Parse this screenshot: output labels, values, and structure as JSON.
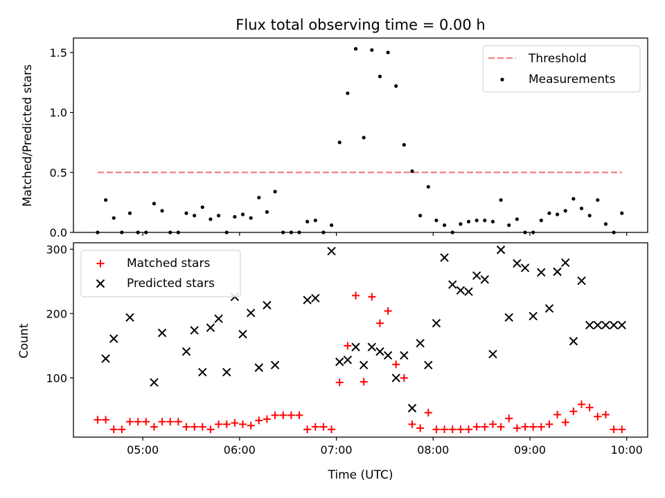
{
  "chart_data": [
    {
      "type": "scatter",
      "title": "Flux total observing time = 0.00 h",
      "xlabel": "",
      "ylabel": "Matched/Predicted stars",
      "xlim": [
        "04:17",
        "10:13"
      ],
      "ylim": [
        0,
        1.62
      ],
      "yticks": [
        0.0,
        0.5,
        1.0,
        1.5
      ],
      "ytick_labels": [
        "0.0",
        "0.5",
        "1.0",
        "1.5"
      ],
      "grid": false,
      "legend": {
        "placement": "top-right",
        "entries": [
          "Threshold",
          "Measurements"
        ]
      },
      "threshold": {
        "name": "Threshold",
        "value": 0.5,
        "x_start": "04:32",
        "x_end": "09:57",
        "color": "#f08080",
        "style": "dashed"
      },
      "series": [
        {
          "name": "Measurements",
          "marker": "dot",
          "color": "#000000",
          "x": [
            "04:32",
            "04:37",
            "04:42",
            "04:47",
            "04:52",
            "04:57",
            "05:02",
            "05:07",
            "05:12",
            "05:17",
            "05:22",
            "05:27",
            "05:32",
            "05:37",
            "05:42",
            "05:47",
            "05:52",
            "05:57",
            "06:02",
            "06:07",
            "06:12",
            "06:17",
            "06:22",
            "06:27",
            "06:32",
            "06:37",
            "06:42",
            "06:47",
            "06:52",
            "06:57",
            "07:02",
            "07:07",
            "07:12",
            "07:17",
            "07:22",
            "07:27",
            "07:32",
            "07:37",
            "07:42",
            "07:47",
            "07:52",
            "07:57",
            "08:02",
            "08:07",
            "08:12",
            "08:17",
            "08:22",
            "08:27",
            "08:32",
            "08:37",
            "08:42",
            "08:47",
            "08:52",
            "08:57",
            "09:02",
            "09:07",
            "09:12",
            "09:17",
            "09:22",
            "09:27",
            "09:32",
            "09:37",
            "09:42",
            "09:47",
            "09:52",
            "09:57"
          ],
          "y": [
            0.0,
            0.27,
            0.12,
            0.0,
            0.16,
            0.0,
            0.0,
            0.24,
            0.18,
            0.0,
            0.0,
            0.16,
            0.14,
            0.21,
            0.11,
            0.14,
            0.0,
            0.13,
            0.15,
            0.12,
            0.29,
            0.17,
            0.34,
            0.0,
            0.0,
            0.0,
            0.09,
            0.1,
            0.0,
            0.06,
            0.75,
            1.16,
            1.53,
            0.79,
            1.52,
            1.3,
            1.5,
            1.22,
            0.73,
            0.51,
            0.14,
            0.38,
            0.1,
            0.06,
            0.0,
            0.07,
            0.09,
            0.1,
            0.1,
            0.09,
            0.27,
            0.06,
            0.11,
            0.0,
            0.0,
            0.1,
            0.16,
            0.15,
            0.18,
            0.28,
            0.2,
            0.14,
            0.27,
            0.07,
            0.0,
            0.16
          ]
        }
      ]
    },
    {
      "type": "scatter",
      "title": "",
      "xlabel": "Time (UTC)",
      "ylabel": "Count",
      "xlim": [
        "04:17",
        "10:13"
      ],
      "xticks": [
        "05:00",
        "06:00",
        "07:00",
        "08:00",
        "09:00",
        "10:00"
      ],
      "ylim": [
        8,
        310
      ],
      "yticks": [
        100,
        200,
        300
      ],
      "grid": false,
      "legend": {
        "placement": "top-left",
        "entries": [
          "Matched stars",
          "Predicted stars"
        ]
      },
      "series": [
        {
          "name": "Matched stars",
          "marker": "plus",
          "color": "#ff0000",
          "x": [
            "04:32",
            "04:37",
            "04:42",
            "04:47",
            "04:52",
            "04:57",
            "05:02",
            "05:07",
            "05:12",
            "05:17",
            "05:22",
            "05:27",
            "05:32",
            "05:37",
            "05:42",
            "05:47",
            "05:52",
            "05:57",
            "06:02",
            "06:07",
            "06:12",
            "06:17",
            "06:22",
            "06:27",
            "06:32",
            "06:37",
            "06:42",
            "06:47",
            "06:52",
            "06:57",
            "07:02",
            "07:07",
            "07:12",
            "07:17",
            "07:22",
            "07:27",
            "07:32",
            "07:37",
            "07:42",
            "07:47",
            "07:52",
            "07:57",
            "08:02",
            "08:07",
            "08:12",
            "08:17",
            "08:22",
            "08:27",
            "08:32",
            "08:37",
            "08:42",
            "08:47",
            "08:52",
            "08:57",
            "09:02",
            "09:07",
            "09:12",
            "09:17",
            "09:22",
            "09:27",
            "09:32",
            "09:37",
            "09:42",
            "09:47",
            "09:52",
            "09:57"
          ],
          "y": [
            35,
            35,
            20,
            20,
            32,
            32,
            32,
            24,
            32,
            32,
            32,
            24,
            24,
            24,
            20,
            28,
            28,
            30,
            28,
            26,
            34,
            36,
            42,
            42,
            42,
            42,
            20,
            24,
            24,
            20,
            93,
            150,
            228,
            94,
            226,
            185,
            204,
            121,
            100,
            28,
            22,
            46,
            20,
            20,
            20,
            20,
            20,
            24,
            24,
            28,
            24,
            37,
            22,
            24,
            24,
            24,
            28,
            43,
            31,
            48,
            59,
            54,
            40,
            43,
            20,
            20
          ]
        },
        {
          "name": "Predicted stars",
          "marker": "x",
          "color": "#000000",
          "x": [
            "04:37",
            "04:42",
            "04:52",
            "05:07",
            "05:12",
            "05:27",
            "05:32",
            "05:37",
            "05:42",
            "05:47",
            "05:52",
            "05:57",
            "06:02",
            "06:07",
            "06:12",
            "06:17",
            "06:22",
            "06:42",
            "06:47",
            "06:57",
            "07:02",
            "07:07",
            "07:12",
            "07:17",
            "07:22",
            "07:27",
            "07:32",
            "07:37",
            "07:42",
            "07:47",
            "07:52",
            "07:57",
            "08:02",
            "08:07",
            "08:12",
            "08:17",
            "08:22",
            "08:27",
            "08:32",
            "08:37",
            "08:42",
            "08:47",
            "08:52",
            "08:57",
            "09:02",
            "09:07",
            "09:12",
            "09:17",
            "09:22",
            "09:27",
            "09:32",
            "09:37",
            "09:42",
            "09:47",
            "09:52",
            "09:57"
          ],
          "y": [
            130,
            161,
            194,
            93,
            170,
            141,
            174,
            109,
            178,
            192,
            109,
            226,
            168,
            201,
            116,
            213,
            120,
            221,
            224,
            297,
            125,
            128,
            148,
            120,
            148,
            141,
            135,
            100,
            135,
            53,
            154,
            120,
            185,
            287,
            245,
            236,
            234,
            259,
            253,
            137,
            299,
            194,
            278,
            271,
            196,
            264,
            208,
            265,
            279,
            157,
            251,
            182,
            182,
            182,
            182,
            182
          ]
        }
      ]
    }
  ]
}
